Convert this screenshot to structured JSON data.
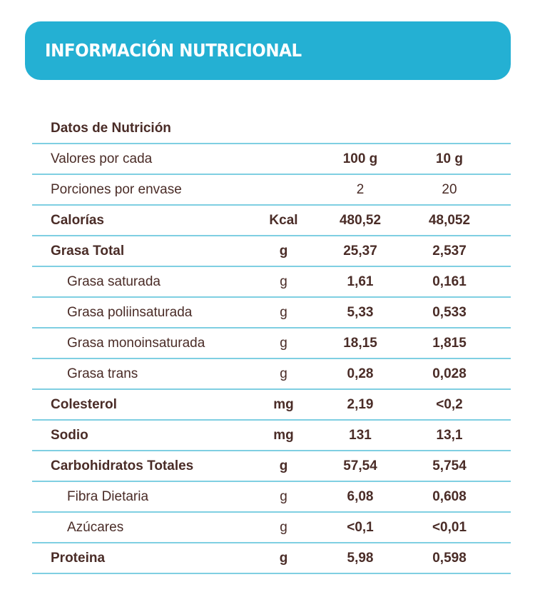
{
  "header": {
    "title": "INFORMACIÓN NUTRICIONAL",
    "background_color": "#24b0d3"
  },
  "table": {
    "caption": "Datos de Nutrición",
    "serving_row": {
      "label": "Valores por cada",
      "col1": "100 g",
      "col2": "10 g"
    },
    "portions_row": {
      "label": "Porciones por envase",
      "col1": "2",
      "col2": "20"
    },
    "rows": [
      {
        "label": "Calorías",
        "unit": "Kcal",
        "v100": "480,52",
        "v10": "48,052"
      },
      {
        "label": "Grasa Total",
        "unit": "g",
        "v100": "25,37",
        "v10": "2,537"
      },
      {
        "label": "Grasa saturada",
        "unit": "g",
        "v100": "1,61",
        "v10": "0,161"
      },
      {
        "label": "Grasa poliinsaturada",
        "unit": "g",
        "v100": "5,33",
        "v10": "0,533"
      },
      {
        "label": "Grasa monoinsaturada",
        "unit": "g",
        "v100": "18,15",
        "v10": "1,815"
      },
      {
        "label": "Grasa trans",
        "unit": "g",
        "v100": "0,28",
        "v10": "0,028"
      },
      {
        "label": "Colesterol",
        "unit": "mg",
        "v100": "2,19",
        "v10": "<0,2"
      },
      {
        "label": "Sodio",
        "unit": "mg",
        "v100": "131",
        "v10": "13,1"
      },
      {
        "label": "Carbohidratos Totales",
        "unit": "g",
        "v100": "57,54",
        "v10": "5,754"
      },
      {
        "label": "Fibra Dietaria",
        "unit": "g",
        "v100": "6,08",
        "v10": "0,608"
      },
      {
        "label": "Azúcares",
        "unit": "g",
        "v100": "<0,1",
        "v10": "<0,01"
      },
      {
        "label": "Proteina",
        "unit": "g",
        "v100": "5,98",
        "v10": "0,598"
      }
    ]
  }
}
